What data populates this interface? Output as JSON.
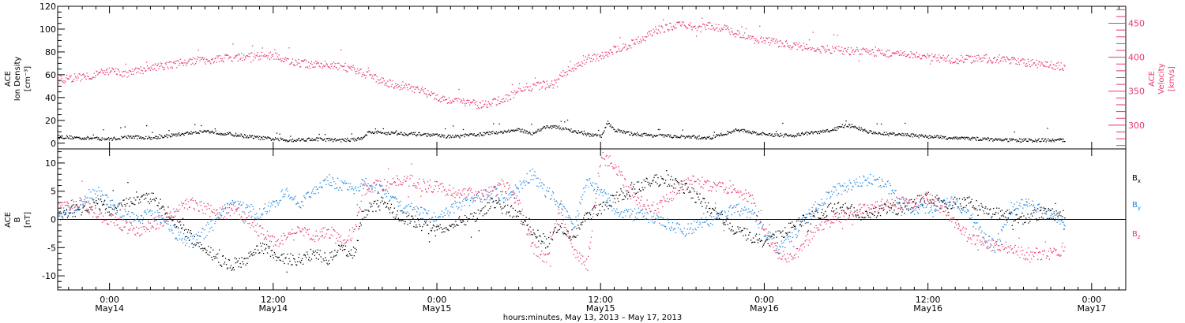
{
  "figure": {
    "xlabel": "hours:minutes, May 13, 2013 – May 17, 2013",
    "x_ticks": [
      {
        "h": 0,
        "time": "0:00",
        "date": "May14"
      },
      {
        "h": 12,
        "time": "12:00",
        "date": "May14"
      },
      {
        "h": 24,
        "time": "0:00",
        "date": "May15"
      },
      {
        "h": 36,
        "time": "12:00",
        "date": "May15"
      },
      {
        "h": 48,
        "time": "0:00",
        "date": "May16"
      },
      {
        "h": 60,
        "time": "12:00",
        "date": "May16"
      },
      {
        "h": 72,
        "time": "0:00",
        "date": "May17"
      }
    ],
    "x_range_hours_from_May14_0000": [
      -3.8,
      74.5
    ],
    "colors": {
      "density": "#000000",
      "velocity": "#e8386a",
      "bx": "#000000",
      "by": "#1f86e0",
      "bz": "#e8386a"
    }
  },
  "chart_data": [
    {
      "type": "scatter",
      "panel": "top",
      "ylabel_left": [
        "ACE",
        "Ion Density",
        "[cm⁻³]"
      ],
      "ylabel_right": [
        "ACE",
        "Velocity",
        "[km/s]"
      ],
      "ylim_left": [
        -5,
        120
      ],
      "ylim_right": [
        265,
        475
      ],
      "yticks_left": [
        0,
        20,
        40,
        60,
        80,
        100,
        120
      ],
      "yticks_right": [
        300,
        350,
        400,
        450
      ],
      "series": [
        {
          "name": "Ion Density",
          "axis": "left",
          "color": "#000000",
          "x": [
            -3.8,
            -2,
            0,
            1.5,
            3,
            5,
            7,
            9,
            11,
            13,
            15,
            17,
            18.3,
            19,
            21,
            23,
            25,
            27,
            28.5,
            30,
            31,
            32,
            33,
            34,
            35,
            36,
            36.5,
            37,
            38,
            40,
            42,
            44,
            46,
            48,
            50,
            51,
            52,
            53,
            54,
            55,
            56,
            58,
            60,
            62,
            64,
            66,
            68,
            70
          ],
          "y": [
            6,
            5,
            4,
            6,
            5,
            8,
            11,
            8,
            5,
            3,
            4,
            3,
            4,
            10,
            9,
            8,
            6,
            8,
            10,
            12,
            9,
            15,
            14,
            11,
            8,
            6,
            19,
            12,
            9,
            7,
            6,
            5,
            12,
            8,
            7,
            9,
            10,
            12,
            16,
            13,
            9,
            8,
            6,
            5,
            4,
            3,
            3,
            3
          ]
        },
        {
          "name": "Velocity",
          "axis": "right",
          "color": "#e8386a",
          "x": [
            -3.8,
            -2,
            -1,
            0,
            1,
            2,
            4,
            6,
            8,
            10,
            12,
            13,
            15,
            17,
            18,
            19,
            20,
            21,
            22,
            23,
            24,
            25,
            26,
            27,
            28,
            29,
            30,
            31,
            32,
            32.8,
            33,
            34,
            35,
            36,
            37,
            38,
            39,
            40,
            41,
            42,
            43,
            44,
            45,
            46,
            47,
            48,
            50,
            52,
            54,
            56,
            58,
            60,
            62,
            64,
            66,
            68,
            70
          ],
          "y": [
            368,
            372,
            376,
            380,
            376,
            380,
            388,
            395,
            398,
            402,
            403,
            395,
            389,
            387,
            382,
            372,
            365,
            360,
            357,
            350,
            342,
            337,
            335,
            330,
            333,
            340,
            350,
            358,
            360,
            362,
            375,
            385,
            398,
            402,
            412,
            418,
            428,
            440,
            445,
            450,
            442,
            447,
            443,
            435,
            428,
            425,
            418,
            413,
            410,
            408,
            405,
            400,
            397,
            399,
            395,
            391,
            387
          ]
        }
      ]
    },
    {
      "type": "scatter",
      "panel": "bottom",
      "ylabel_left": [
        "ACE",
        "B",
        "[nT]"
      ],
      "ylim": [
        -12.5,
        12.5
      ],
      "yticks": [
        -10,
        -5,
        0,
        5,
        10
      ],
      "zero_line": true,
      "legend_position": "right",
      "legend": [
        {
          "label": "B",
          "sub": "x",
          "color": "#000000"
        },
        {
          "label": "B",
          "sub": "y",
          "color": "#1f86e0"
        },
        {
          "label": "B",
          "sub": "z",
          "color": "#e8386a"
        }
      ],
      "series": [
        {
          "name": "Bx",
          "color": "#000000",
          "x": [
            -3.8,
            -2,
            -1,
            0,
            1,
            2,
            3,
            4,
            5,
            6,
            7,
            8,
            9,
            10,
            11,
            12,
            13,
            14,
            15,
            16,
            17,
            18,
            18.5,
            19,
            20,
            21,
            22,
            23,
            24,
            25,
            26,
            27,
            28,
            29,
            30,
            31,
            32,
            33,
            34,
            35,
            36,
            37,
            38,
            39,
            40,
            41,
            42,
            43,
            44,
            45,
            46,
            47,
            48,
            49,
            50,
            51,
            52,
            53,
            54,
            55,
            56,
            57,
            58,
            59,
            60,
            61,
            62,
            63,
            64,
            65,
            66,
            67,
            68,
            69,
            70
          ],
          "y": [
            1,
            2,
            3,
            2,
            3,
            4,
            4,
            2,
            -1,
            -3,
            -5,
            -7,
            -8,
            -7,
            -5,
            -6,
            -7,
            -7,
            -6,
            -7,
            -5,
            -6,
            1,
            2,
            3,
            1,
            0,
            -1,
            -2,
            -1,
            0,
            1,
            3,
            2,
            1,
            -2,
            -4,
            -1,
            -3,
            1,
            2,
            4,
            5,
            6,
            7,
            7,
            6,
            4,
            2,
            0,
            -2,
            -3,
            -4,
            -3,
            -1,
            0,
            1,
            2,
            2,
            1,
            1,
            2,
            2,
            3,
            4,
            3,
            3,
            3,
            2,
            1,
            1,
            0,
            1,
            1,
            1
          ]
        },
        {
          "name": "By",
          "color": "#1f86e0",
          "x": [
            -3.8,
            -2,
            -1,
            0,
            1,
            2,
            3,
            4,
            5,
            6,
            7,
            8,
            9,
            10,
            11,
            12,
            13,
            14,
            15,
            16,
            17,
            18,
            18.5,
            19,
            20,
            21,
            22,
            23,
            24,
            25,
            26,
            27,
            28,
            29,
            30,
            31,
            32,
            33,
            34,
            35,
            36,
            37,
            38,
            39,
            40,
            41,
            42,
            43,
            44,
            45,
            46,
            47,
            48,
            49,
            50,
            51,
            52,
            53,
            54,
            55,
            56,
            57,
            58,
            59,
            60,
            61,
            62,
            63,
            64,
            65,
            66,
            67,
            68,
            69,
            70
          ],
          "y": [
            1,
            3,
            5,
            3,
            1,
            0,
            1,
            0,
            -3,
            -4,
            -2,
            1,
            3,
            2,
            1,
            3,
            5,
            3,
            5,
            7,
            6,
            5,
            7,
            6,
            5,
            3,
            2,
            1,
            0,
            2,
            3,
            4,
            5,
            4,
            6,
            8,
            5,
            3,
            -1,
            7,
            5,
            2,
            1,
            1,
            0,
            -1,
            -2,
            -1,
            0,
            1,
            2,
            1,
            -2,
            -5,
            -3,
            0,
            3,
            5,
            6,
            7,
            7,
            6,
            3,
            2,
            2,
            3,
            3,
            1,
            -3,
            -5,
            2,
            3,
            2,
            1,
            0
          ]
        },
        {
          "name": "Bz",
          "color": "#e8386a",
          "x": [
            -3.8,
            -2,
            -1,
            0,
            1,
            2,
            3,
            4,
            5,
            6,
            7,
            8,
            9,
            10,
            11,
            12,
            13,
            14,
            15,
            16,
            17,
            18,
            18.5,
            19,
            20,
            21,
            22,
            23,
            24,
            25,
            26,
            27,
            28,
            29,
            30,
            31,
            32,
            33,
            34,
            35,
            36,
            37,
            38,
            39,
            40,
            41,
            42,
            43,
            44,
            45,
            46,
            47,
            48,
            49,
            50,
            51,
            52,
            53,
            54,
            55,
            56,
            57,
            58,
            59,
            60,
            61,
            62,
            63,
            64,
            65,
            66,
            67,
            68,
            69,
            70
          ],
          "y": [
            2,
            3,
            1,
            0,
            -1,
            -2,
            -1,
            0,
            2,
            3,
            2,
            1,
            2,
            0,
            -2,
            -4,
            -3,
            -2,
            -3,
            -2,
            -4,
            -2,
            5,
            6,
            6,
            7,
            7,
            6,
            6,
            5,
            5,
            4,
            5,
            6,
            3,
            -5,
            -7,
            2,
            -6,
            -8,
            11,
            10,
            5,
            3,
            2,
            4,
            6,
            7,
            6,
            6,
            5,
            4,
            -2,
            -6,
            -7,
            -4,
            -1,
            0,
            1,
            2,
            2,
            3,
            3,
            3,
            4,
            2,
            -1,
            -3,
            -4,
            -5,
            -5,
            -6,
            -6,
            -6,
            -5
          ]
        }
      ]
    }
  ]
}
